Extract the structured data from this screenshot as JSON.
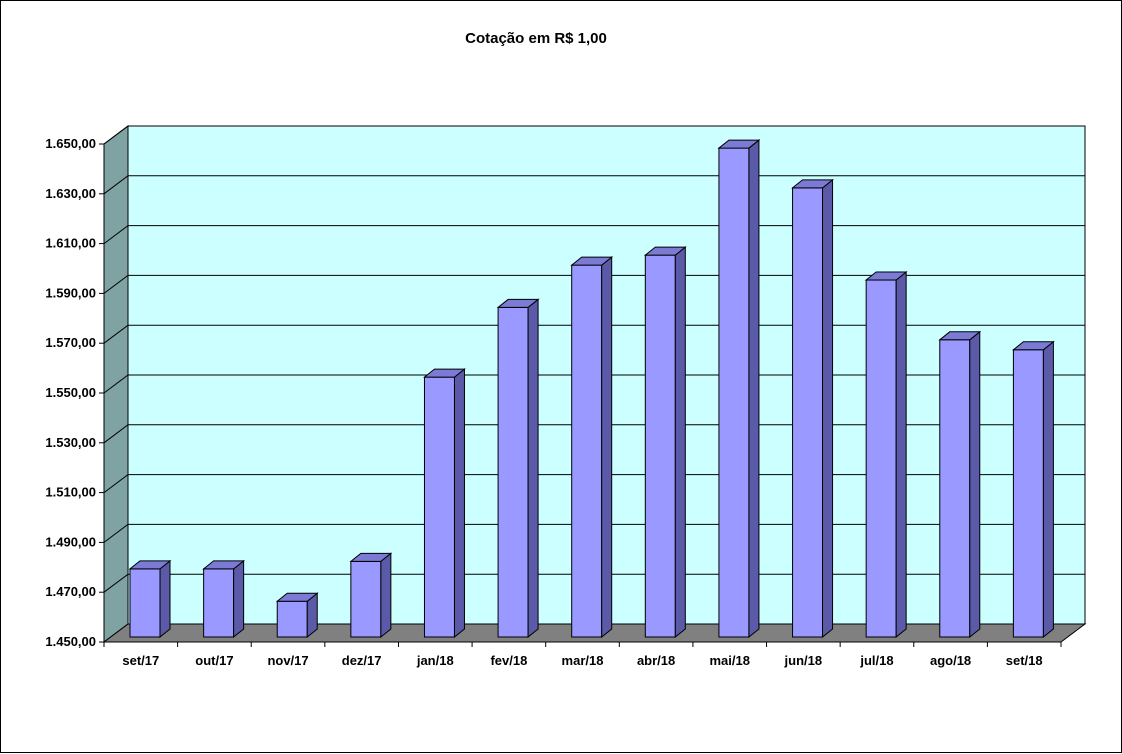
{
  "chart_data": {
    "type": "bar",
    "title": "Cotação em R$ 1,00",
    "xlabel": "",
    "ylabel": "",
    "categories": [
      "set/17",
      "out/17",
      "nov/17",
      "dez/17",
      "jan/18",
      "fev/18",
      "mar/18",
      "abr/18",
      "mai/18",
      "jun/18",
      "jul/18",
      "ago/18",
      "set/18"
    ],
    "values": [
      1478,
      1478,
      1465,
      1481,
      1555,
      1583,
      1600,
      1604,
      1647,
      1631,
      1594,
      1570,
      1566
    ],
    "ylim": [
      1450,
      1650
    ],
    "yticks": [
      1450,
      1470,
      1490,
      1510,
      1530,
      1550,
      1570,
      1590,
      1610,
      1630,
      1650
    ],
    "ytick_labels": [
      "1.450,00",
      "1.470,00",
      "1.490,00",
      "1.510,00",
      "1.530,00",
      "1.550,00",
      "1.570,00",
      "1.590,00",
      "1.610,00",
      "1.630,00",
      "1.650,00"
    ],
    "grid": true,
    "legend": "none",
    "style": "3d-column",
    "colors": {
      "bar_front": "#9999ff",
      "bar_side": "#5a5aa8",
      "bar_top": "#7b7bd6",
      "plot_back": "#ccffff",
      "side_wall": "#7fa3a3",
      "floor": "#808080"
    }
  }
}
